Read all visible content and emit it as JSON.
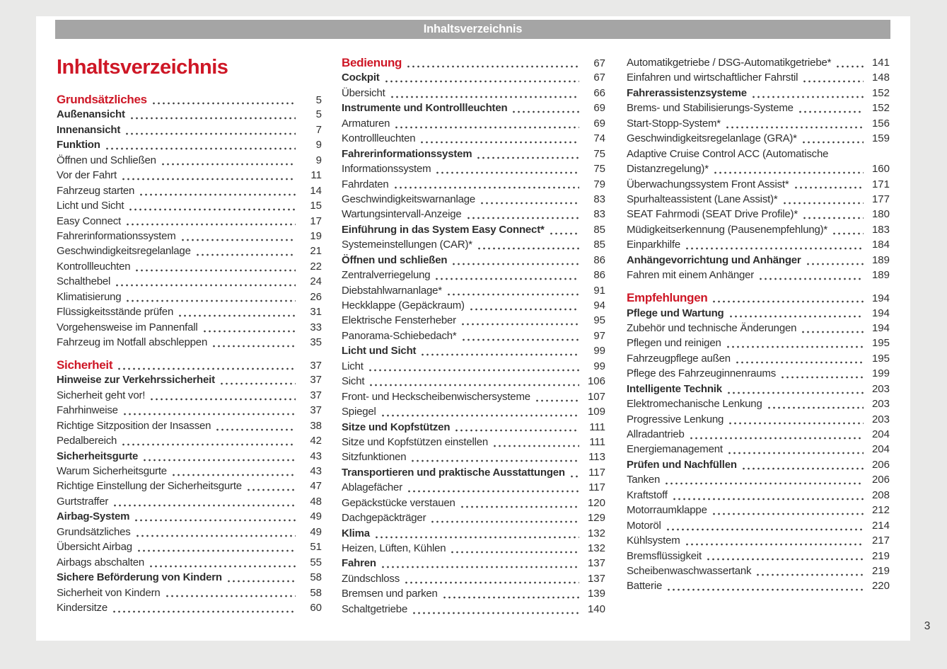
{
  "header": {
    "title": "Inhaltsverzeichnis"
  },
  "title": "Inhaltsverzeichnis",
  "page_number": "3",
  "colors": {
    "accent_red": "#ce1726",
    "header_bar": "#a5a5a5",
    "page_bg": "#ffffff",
    "canvas_bg": "#e9e9e8",
    "text": "#2f2f2f",
    "dot": "#3c3c3c"
  },
  "columns": [
    {
      "items": [
        {
          "label": "Grundsätzliches",
          "page": "5",
          "style": "section"
        },
        {
          "label": "Außenansicht",
          "page": "5",
          "style": "bold"
        },
        {
          "label": "Innenansicht",
          "page": "7",
          "style": "bold"
        },
        {
          "label": "Funktion",
          "page": "9",
          "style": "bold"
        },
        {
          "label": "Öffnen und Schließen",
          "page": "9",
          "style": "normal"
        },
        {
          "label": "Vor der Fahrt",
          "page": "11",
          "style": "normal"
        },
        {
          "label": "Fahrzeug starten",
          "page": "14",
          "style": "normal"
        },
        {
          "label": "Licht und Sicht",
          "page": "15",
          "style": "normal"
        },
        {
          "label": "Easy Connect",
          "page": "17",
          "style": "normal"
        },
        {
          "label": "Fahrerinformationssystem",
          "page": "19",
          "style": "normal"
        },
        {
          "label": "Geschwindigkeitsregelanlage",
          "page": "21",
          "style": "normal"
        },
        {
          "label": "Kontrollleuchten",
          "page": "22",
          "style": "normal"
        },
        {
          "label": "Schalthebel",
          "page": "24",
          "style": "normal"
        },
        {
          "label": "Klimatisierung",
          "page": "26",
          "style": "normal"
        },
        {
          "label": "Flüssigkeitsstände prüfen",
          "page": "31",
          "style": "normal"
        },
        {
          "label": "Vorgehensweise im Pannenfall",
          "page": "33",
          "style": "normal"
        },
        {
          "label": "Fahrzeug im Notfall abschleppen",
          "page": "35",
          "style": "normal"
        },
        {
          "label": "Sicherheit",
          "page": "37",
          "style": "section",
          "gap": true
        },
        {
          "label": "Hinweise zur Verkehrssicherheit",
          "page": "37",
          "style": "bold"
        },
        {
          "label": "Sicherheit geht vor!",
          "page": "37",
          "style": "normal"
        },
        {
          "label": "Fahrhinweise",
          "page": "37",
          "style": "normal"
        },
        {
          "label": "Richtige Sitzposition der Insassen",
          "page": "38",
          "style": "normal"
        },
        {
          "label": "Pedalbereich",
          "page": "42",
          "style": "normal"
        },
        {
          "label": "Sicherheitsgurte",
          "page": "43",
          "style": "bold"
        },
        {
          "label": "Warum Sicherheitsgurte",
          "page": "43",
          "style": "normal"
        },
        {
          "label": "Richtige Einstellung der Sicherheitsgurte",
          "page": "47",
          "style": "normal"
        },
        {
          "label": "Gurtstraffer",
          "page": "48",
          "style": "normal"
        },
        {
          "label": "Airbag-System",
          "page": "49",
          "style": "bold"
        },
        {
          "label": "Grundsätzliches",
          "page": "49",
          "style": "normal"
        },
        {
          "label": "Übersicht Airbag",
          "page": "51",
          "style": "normal"
        },
        {
          "label": "Airbags abschalten",
          "page": "55",
          "style": "normal"
        },
        {
          "label": "Sichere Beförderung von Kindern",
          "page": "58",
          "style": "bold"
        },
        {
          "label": "Sicherheit von Kindern",
          "page": "58",
          "style": "normal"
        },
        {
          "label": "Kindersitze",
          "page": "60",
          "style": "normal"
        }
      ]
    },
    {
      "items": [
        {
          "label": "Bedienung",
          "page": "67",
          "style": "section"
        },
        {
          "label": "Cockpit",
          "page": "67",
          "style": "bold"
        },
        {
          "label": "Übersicht",
          "page": "66",
          "style": "normal"
        },
        {
          "label": "Instrumente und Kontrollleuchten",
          "page": "69",
          "style": "bold"
        },
        {
          "label": "Armaturen",
          "page": "69",
          "style": "normal"
        },
        {
          "label": "Kontrollleuchten",
          "page": "74",
          "style": "normal"
        },
        {
          "label": "Fahrerinformationssystem",
          "page": "75",
          "style": "bold"
        },
        {
          "label": "Informationssystem",
          "page": "75",
          "style": "normal"
        },
        {
          "label": "Fahrdaten",
          "page": "79",
          "style": "normal"
        },
        {
          "label": "Geschwindigkeitswarnanlage",
          "page": "83",
          "style": "normal"
        },
        {
          "label": "Wartungsintervall-Anzeige",
          "page": "83",
          "style": "normal"
        },
        {
          "label": "Einführung in das System Easy Connect*",
          "page": "85",
          "style": "bold"
        },
        {
          "label": "Systemeinstellungen (CAR)*",
          "page": "85",
          "style": "normal"
        },
        {
          "label": "Öffnen und schließen",
          "page": "86",
          "style": "bold"
        },
        {
          "label": "Zentralverriegelung",
          "page": "86",
          "style": "normal"
        },
        {
          "label": "Diebstahlwarnanlage*",
          "page": "91",
          "style": "normal"
        },
        {
          "label": "Heckklappe (Gepäckraum)",
          "page": "94",
          "style": "normal"
        },
        {
          "label": "Elektrische Fensterheber",
          "page": "95",
          "style": "normal"
        },
        {
          "label": "Panorama-Schiebedach*",
          "page": "97",
          "style": "normal"
        },
        {
          "label": "Licht und Sicht",
          "page": "99",
          "style": "bold"
        },
        {
          "label": "Licht",
          "page": "99",
          "style": "normal"
        },
        {
          "label": "Sicht",
          "page": "106",
          "style": "normal"
        },
        {
          "label": "Front- und Heckscheibenwischersysteme",
          "page": "107",
          "style": "normal"
        },
        {
          "label": "Spiegel",
          "page": "109",
          "style": "normal"
        },
        {
          "label": "Sitze und Kopfstützen",
          "page": "111",
          "style": "bold"
        },
        {
          "label": "Sitze und Kopfstützen einstellen",
          "page": "111",
          "style": "normal"
        },
        {
          "label": "Sitzfunktionen",
          "page": "113",
          "style": "normal"
        },
        {
          "label": "Transportieren und praktische Ausstattungen",
          "page": "117",
          "style": "bold"
        },
        {
          "label": "Ablagefächer",
          "page": "117",
          "style": "normal"
        },
        {
          "label": "Gepäckstücke verstauen",
          "page": "120",
          "style": "normal"
        },
        {
          "label": "Dachgepäckträger",
          "page": "129",
          "style": "normal"
        },
        {
          "label": "Klima",
          "page": "132",
          "style": "bold"
        },
        {
          "label": "Heizen, Lüften, Kühlen",
          "page": "132",
          "style": "normal"
        },
        {
          "label": "Fahren",
          "page": "137",
          "style": "bold"
        },
        {
          "label": "Zündschloss",
          "page": "137",
          "style": "normal"
        },
        {
          "label": "Bremsen und parken",
          "page": "139",
          "style": "normal"
        },
        {
          "label": "Schaltgetriebe",
          "page": "140",
          "style": "normal"
        }
      ]
    },
    {
      "items": [
        {
          "label": "Automatikgetriebe / DSG-Automatikgetriebe*",
          "page": "141",
          "style": "normal"
        },
        {
          "label": "Einfahren und wirtschaftlicher Fahrstil",
          "page": "148",
          "style": "normal"
        },
        {
          "label": "Fahrerassistenzsysteme",
          "page": "152",
          "style": "bold"
        },
        {
          "label": "Brems- und Stabilisierungs-Systeme",
          "page": "152",
          "style": "normal"
        },
        {
          "label": "Start-Stopp-System*",
          "page": "156",
          "style": "normal"
        },
        {
          "label": "Geschwindigkeitsregelanlage (GRA)*",
          "page": "159",
          "style": "normal"
        },
        {
          "label": "Adaptive Cruise Control ACC (Automatische",
          "page": "",
          "style": "normal",
          "noleader": true
        },
        {
          "label": "Distanzregelung)*",
          "page": "160",
          "style": "normal"
        },
        {
          "label": "Überwachungssystem Front Assist*",
          "page": "171",
          "style": "normal"
        },
        {
          "label": "Spurhalteassistent (Lane Assist)*",
          "page": "177",
          "style": "normal"
        },
        {
          "label": "SEAT Fahrmodi (SEAT Drive Profile)*",
          "page": "180",
          "style": "normal"
        },
        {
          "label": "Müdigkeitserkennung (Pausenempfehlung)*",
          "page": "183",
          "style": "normal"
        },
        {
          "label": "Einparkhilfe",
          "page": "184",
          "style": "normal"
        },
        {
          "label": "Anhängevorrichtung und Anhänger",
          "page": "189",
          "style": "bold"
        },
        {
          "label": "Fahren mit einem Anhänger",
          "page": "189",
          "style": "normal"
        },
        {
          "label": "Empfehlungen",
          "page": "194",
          "style": "section",
          "gap": true
        },
        {
          "label": "Pflege und Wartung",
          "page": "194",
          "style": "bold"
        },
        {
          "label": "Zubehör und technische Änderungen",
          "page": "194",
          "style": "normal"
        },
        {
          "label": "Pflegen und reinigen",
          "page": "195",
          "style": "normal"
        },
        {
          "label": "Fahrzeugpflege außen",
          "page": "195",
          "style": "normal"
        },
        {
          "label": "Pflege des Fahrzeuginnenraums",
          "page": "199",
          "style": "normal"
        },
        {
          "label": "Intelligente Technik",
          "page": "203",
          "style": "bold"
        },
        {
          "label": "Elektromechanische Lenkung",
          "page": "203",
          "style": "normal"
        },
        {
          "label": "Progressive Lenkung",
          "page": "203",
          "style": "normal"
        },
        {
          "label": "Allradantrieb",
          "page": "204",
          "style": "normal"
        },
        {
          "label": "Energiemanagement",
          "page": "204",
          "style": "normal"
        },
        {
          "label": "Prüfen und Nachfüllen",
          "page": "206",
          "style": "bold"
        },
        {
          "label": "Tanken",
          "page": "206",
          "style": "normal"
        },
        {
          "label": "Kraftstoff",
          "page": "208",
          "style": "normal"
        },
        {
          "label": "Motorraumklappe",
          "page": "212",
          "style": "normal"
        },
        {
          "label": "Motoröl",
          "page": "214",
          "style": "normal"
        },
        {
          "label": "Kühlsystem",
          "page": "217",
          "style": "normal"
        },
        {
          "label": "Bremsflüssigkeit",
          "page": "219",
          "style": "normal"
        },
        {
          "label": "Scheibenwaschwassertank",
          "page": "219",
          "style": "normal"
        },
        {
          "label": "Batterie",
          "page": "220",
          "style": "normal"
        }
      ]
    }
  ]
}
